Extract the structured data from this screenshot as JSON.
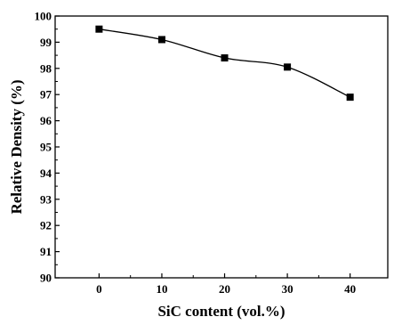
{
  "chart_data": {
    "type": "scatter",
    "xlabel": "SiC content (vol.%)",
    "ylabel": "Relative Density (%)",
    "xlim": [
      -7,
      46
    ],
    "ylim": [
      90,
      100
    ],
    "x_ticks": [
      0,
      10,
      20,
      30,
      40
    ],
    "y_ticks": [
      90,
      91,
      92,
      93,
      94,
      95,
      96,
      97,
      98,
      99,
      100
    ],
    "grid": false,
    "legend": "none",
    "marker": "square",
    "fit_curve": true,
    "color": "#000000",
    "series": [
      {
        "x": [
          0,
          10,
          20,
          30,
          40
        ],
        "y": [
          99.5,
          99.1,
          98.4,
          98.05,
          96.9
        ]
      }
    ]
  }
}
